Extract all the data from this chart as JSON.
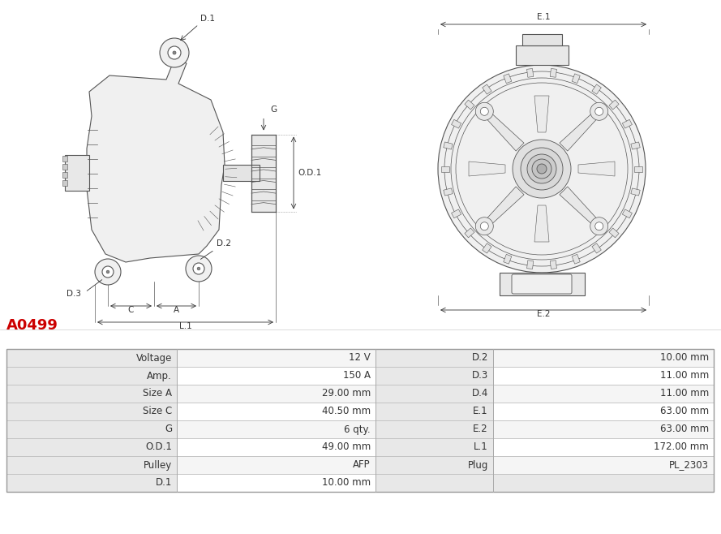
{
  "title": "A0499",
  "title_color": "#cc0000",
  "bg_color": "#ffffff",
  "line_color": "#555555",
  "ann_color": "#333333",
  "left_col_labels": [
    "Voltage",
    "Amp.",
    "Size A",
    "Size C",
    "G",
    "O.D.1",
    "Pulley",
    "D.1"
  ],
  "left_col_values": [
    "12 V",
    "150 A",
    "29.00 mm",
    "40.50 mm",
    "6 qty.",
    "49.00 mm",
    "AFP",
    "10.00 mm"
  ],
  "mid_col_labels": [
    "D.2",
    "D.3",
    "D.4",
    "E.1",
    "E.2",
    "L.1",
    "Plug",
    ""
  ],
  "mid_col_values": [
    "10.00 mm",
    "11.00 mm",
    "11.00 mm",
    "63.00 mm",
    "63.00 mm",
    "172.00 mm",
    "PL_2303",
    ""
  ],
  "table_label_bg": "#e8e8e8",
  "table_val_bg_odd": "#f5f5f5",
  "table_val_bg_even": "#ffffff",
  "table_border": "#bbbbbb"
}
